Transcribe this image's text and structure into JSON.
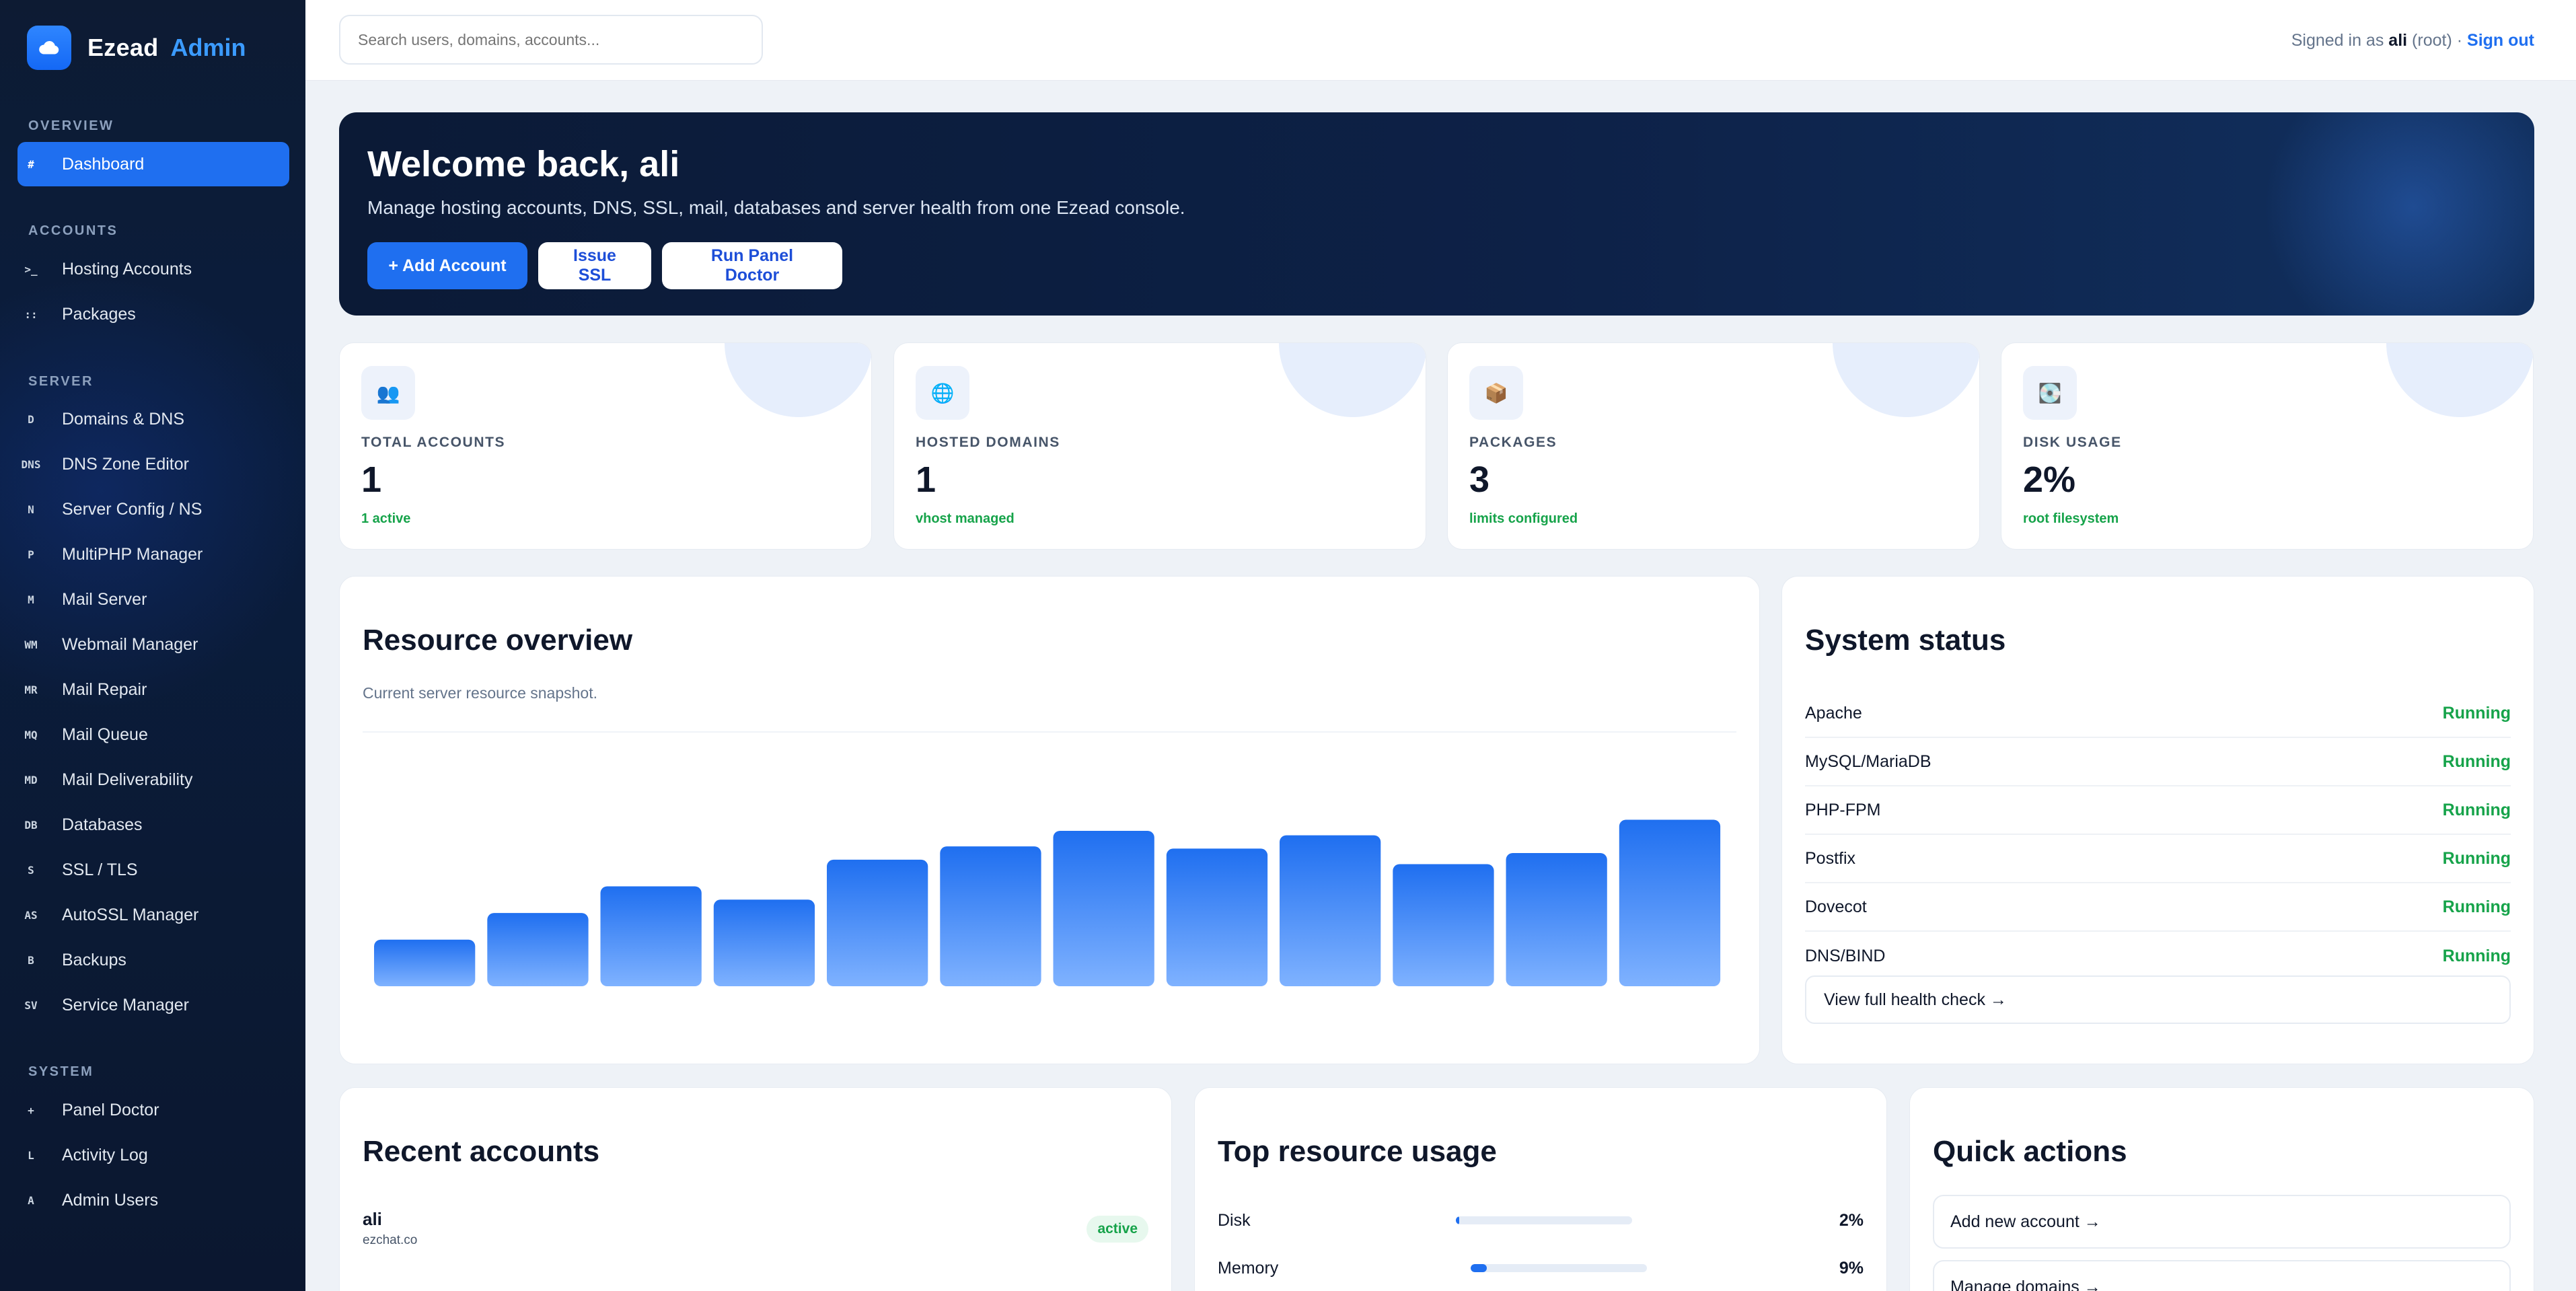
{
  "brand": {
    "name": "Ezead",
    "suffix": "Admin"
  },
  "sidebar": {
    "sections": [
      {
        "title": "OVERVIEW",
        "items": [
          {
            "code": "#",
            "label": "Dashboard",
            "active": true
          }
        ]
      },
      {
        "title": "ACCOUNTS",
        "items": [
          {
            "code": ">_",
            "label": "Hosting Accounts"
          },
          {
            "code": "::",
            "label": "Packages"
          }
        ]
      },
      {
        "title": "SERVER",
        "items": [
          {
            "code": "D",
            "label": "Domains & DNS"
          },
          {
            "code": "DNS",
            "label": "DNS Zone Editor"
          },
          {
            "code": "N",
            "label": "Server Config / NS"
          },
          {
            "code": "P",
            "label": "MultiPHP Manager"
          },
          {
            "code": "M",
            "label": "Mail Server"
          },
          {
            "code": "WM",
            "label": "Webmail Manager"
          },
          {
            "code": "MR",
            "label": "Mail Repair"
          },
          {
            "code": "MQ",
            "label": "Mail Queue"
          },
          {
            "code": "MD",
            "label": "Mail Deliverability"
          },
          {
            "code": "DB",
            "label": "Databases"
          },
          {
            "code": "S",
            "label": "SSL / TLS"
          },
          {
            "code": "AS",
            "label": "AutoSSL Manager"
          },
          {
            "code": "B",
            "label": "Backups"
          },
          {
            "code": "SV",
            "label": "Service Manager"
          }
        ]
      },
      {
        "title": "SYSTEM",
        "items": [
          {
            "code": "+",
            "label": "Panel Doctor"
          },
          {
            "code": "L",
            "label": "Activity Log"
          },
          {
            "code": "A",
            "label": "Admin Users"
          }
        ]
      }
    ]
  },
  "topbar": {
    "search_placeholder": "Search users, domains, accounts...",
    "signed_prefix": "Signed in as",
    "user": "ali",
    "role": "(root)",
    "sep": "·",
    "sign_out": "Sign out"
  },
  "hero": {
    "title": "Welcome back, ali",
    "subtitle": "Manage hosting accounts, DNS, SSL, mail, databases and server health from one Ezead console.",
    "buttons": [
      "+ Add Account",
      "Issue SSL",
      "Run Panel Doctor"
    ]
  },
  "stats": [
    {
      "icon": "people-icon",
      "glyph": "👥",
      "label": "TOTAL ACCOUNTS",
      "value": "1",
      "note": "1 active"
    },
    {
      "icon": "globe-icon",
      "glyph": "🌐",
      "label": "HOSTED DOMAINS",
      "value": "1",
      "note": "vhost managed"
    },
    {
      "icon": "package-icon",
      "glyph": "📦",
      "label": "PACKAGES",
      "value": "3",
      "note": "limits configured"
    },
    {
      "icon": "disk-icon",
      "glyph": "💽",
      "label": "DISK USAGE",
      "value": "2%",
      "note": "root filesystem"
    }
  ],
  "resource_overview": {
    "title": "Resource overview",
    "subtitle": "Current server resource snapshot."
  },
  "chart_data": {
    "type": "bar",
    "values": [
      21,
      33,
      45,
      39,
      57,
      63,
      70,
      62,
      68,
      55,
      60,
      75
    ],
    "ylim": [
      0,
      100
    ],
    "color_top": "#1f6ff0",
    "color_bottom": "#7fb2ff"
  },
  "system_status": {
    "title": "System status",
    "rows": [
      {
        "name": "Apache",
        "status": "Running"
      },
      {
        "name": "MySQL/MariaDB",
        "status": "Running"
      },
      {
        "name": "PHP-FPM",
        "status": "Running"
      },
      {
        "name": "Postfix",
        "status": "Running"
      },
      {
        "name": "Dovecot",
        "status": "Running"
      },
      {
        "name": "DNS/BIND",
        "status": "Running"
      }
    ],
    "link": "View full health check →"
  },
  "recent_accounts": {
    "title": "Recent accounts",
    "items": [
      {
        "name": "ali",
        "domain": "ezchat.co",
        "status": "active"
      }
    ]
  },
  "top_usage": {
    "title": "Top resource usage",
    "rows": [
      {
        "label": "Disk",
        "percent": 2,
        "display": "2%"
      },
      {
        "label": "Memory",
        "percent": 9,
        "display": "9%"
      }
    ]
  },
  "quick_actions": {
    "title": "Quick actions",
    "items": [
      "Add new account →",
      "Manage domains →"
    ]
  }
}
